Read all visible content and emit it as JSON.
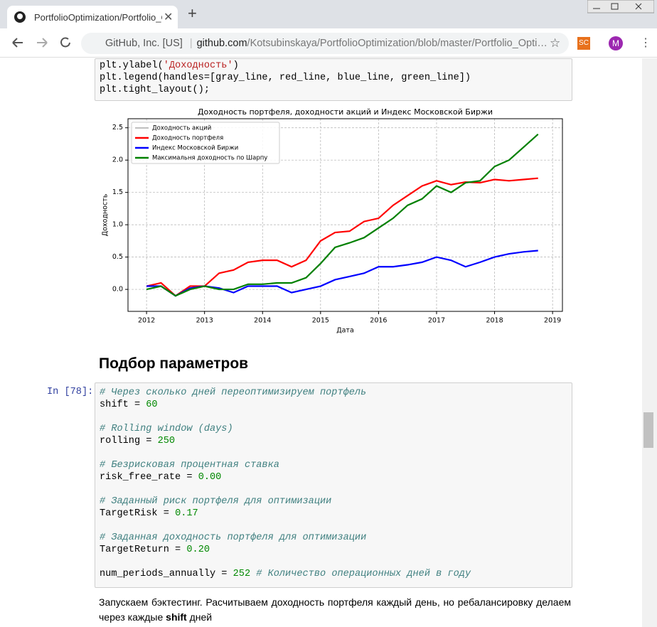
{
  "browser": {
    "tab_title": "PortfolioOptimization/Portfolio_Optimization.ipynb",
    "site_label": "GitHub, Inc. [US]",
    "url_host": "github.com",
    "url_path": "/Kotsubinskaya/PortfolioOptimization/blob/master/Portfolio_Opti…",
    "extension": "SC",
    "avatar": "M"
  },
  "cell_1": {
    "lines": [
      [
        {
          "text": "plt.ylabel(",
          "style": "plain"
        },
        {
          "text": "'Доходность'",
          "style": "string"
        },
        {
          "text": ")",
          "style": "plain"
        }
      ],
      [
        {
          "text": "plt.legend(handles=[gray_line, red_line, blue_line, green_line])",
          "style": "plain"
        }
      ],
      [
        {
          "text": "plt.tight_layout();",
          "style": "plain"
        }
      ]
    ]
  },
  "chart_data": {
    "type": "line",
    "title": "Доходность портфеля, доходности акций и Индекс Московской Биржи",
    "x_label": "Дата",
    "y_label": "Доходность",
    "x": [
      2012.0,
      2012.25,
      2012.5,
      2012.75,
      2013.0,
      2013.25,
      2013.5,
      2013.75,
      2014.0,
      2014.25,
      2014.5,
      2014.75,
      2015.0,
      2015.25,
      2015.5,
      2015.75,
      2016.0,
      2016.25,
      2016.5,
      2016.75,
      2017.0,
      2017.25,
      2017.5,
      2017.75,
      2018.0,
      2018.25,
      2018.5,
      2018.75
    ],
    "series": [
      {
        "name": "Доходность акций",
        "color": "#999999",
        "values": [
          null,
          null,
          null,
          null,
          null,
          null,
          null,
          null,
          null,
          null,
          null,
          null,
          null,
          null,
          null,
          null,
          null,
          null,
          null,
          null,
          null,
          null,
          null,
          null,
          null,
          null,
          null,
          null
        ]
      },
      {
        "name": "Доходность портфеля",
        "color": "#ff0000",
        "values": [
          0.05,
          0.1,
          -0.1,
          0.05,
          0.05,
          0.25,
          0.3,
          0.42,
          0.45,
          0.45,
          0.35,
          0.45,
          0.75,
          0.88,
          0.9,
          1.05,
          1.1,
          1.3,
          1.45,
          1.6,
          1.68,
          1.62,
          1.66,
          1.65,
          1.7,
          1.68,
          1.7,
          1.72
        ]
      },
      {
        "name": "Индекс Московской Биржи",
        "color": "#0000ff",
        "values": [
          0.05,
          0.05,
          -0.1,
          0.02,
          0.05,
          0.02,
          -0.05,
          0.05,
          0.05,
          0.05,
          -0.05,
          0.0,
          0.05,
          0.15,
          0.2,
          0.25,
          0.35,
          0.35,
          0.38,
          0.42,
          0.5,
          0.45,
          0.35,
          0.42,
          0.5,
          0.55,
          0.58,
          0.6
        ]
      },
      {
        "name": "Максимальня доходность по Шарпу",
        "color": "#008000",
        "values": [
          0.0,
          0.05,
          -0.1,
          0.0,
          0.05,
          0.0,
          0.0,
          0.08,
          0.08,
          0.1,
          0.1,
          0.18,
          0.4,
          0.65,
          0.72,
          0.8,
          0.95,
          1.1,
          1.3,
          1.4,
          1.6,
          1.5,
          1.65,
          1.68,
          1.9,
          2.0,
          2.2,
          2.4
        ]
      }
    ],
    "xlim": [
      2011.68,
      2019.17
    ],
    "xticks": [
      2012,
      2013,
      2014,
      2015,
      2016,
      2017,
      2018,
      2019
    ],
    "ylim": [
      -0.34,
      2.64
    ],
    "yticks": [
      {
        "value": 0,
        "label": "0.0"
      },
      0.5,
      {
        "value": 1,
        "label": "1.0"
      },
      1.5,
      {
        "value": 2,
        "label": "2.0"
      },
      2.5
    ],
    "grid": true,
    "legend_position": "upper-left"
  },
  "heading": "Подбор параметров",
  "cell_2": {
    "prompt": "In [78]:",
    "lines": [
      [
        {
          "text": "# Через сколько дней переоптимизируем портфель",
          "style": "comment"
        }
      ],
      [
        {
          "text": "shift = ",
          "style": "plain"
        },
        {
          "text": "60",
          "style": "number"
        }
      ],
      [],
      [
        {
          "text": "# Rolling window (days)",
          "style": "comment"
        }
      ],
      [
        {
          "text": "rolling = ",
          "style": "plain"
        },
        {
          "text": "250",
          "style": "number"
        }
      ],
      [],
      [
        {
          "text": "# Безрисковая процентная ставка",
          "style": "comment"
        }
      ],
      [
        {
          "text": "risk_free_rate = ",
          "style": "plain"
        },
        {
          "text": "0.00",
          "style": "number"
        }
      ],
      [],
      [
        {
          "text": "# Заданный риск портфеля для оптимизации",
          "style": "comment"
        }
      ],
      [
        {
          "text": "TargetRisk = ",
          "style": "plain"
        },
        {
          "text": "0.17",
          "style": "number"
        }
      ],
      [],
      [
        {
          "text": "# Заданная доходность портфеля для оптимизации",
          "style": "comment"
        }
      ],
      [
        {
          "text": "TargetReturn = ",
          "style": "plain"
        },
        {
          "text": "0.20",
          "style": "number"
        }
      ],
      [],
      [
        {
          "text": "num_periods_annually = ",
          "style": "plain"
        },
        {
          "text": "252",
          "style": "number"
        },
        {
          "text": " # Количество операционных дней в году",
          "style": "comment"
        }
      ]
    ]
  },
  "paragraph": {
    "before": "Запускаем бэктестинг. Расчитываем доходность портфеля каждый день, но ребалансировку делаем через каждые ",
    "bold": "shift",
    "after": " дней"
  }
}
